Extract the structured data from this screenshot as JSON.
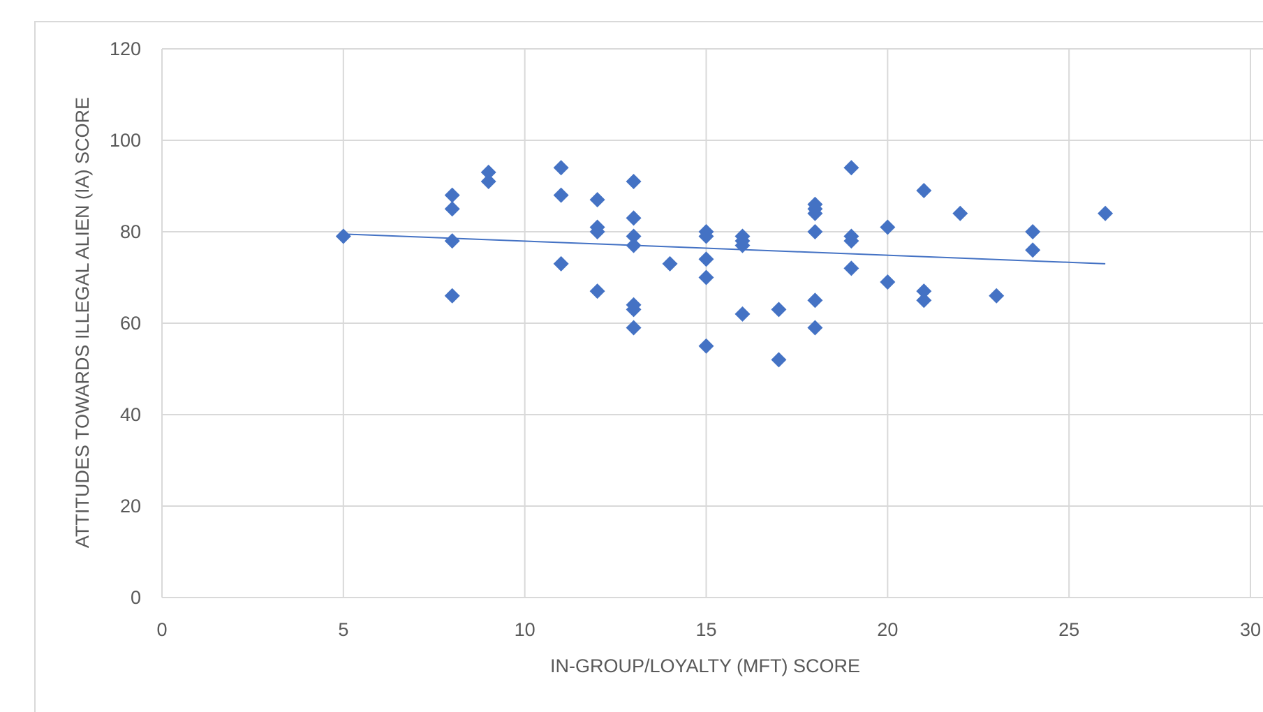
{
  "chart_data": {
    "type": "scatter",
    "title": "",
    "xlabel": "IN-GROUP/LOYALTY (MFT) SCORE",
    "ylabel": "ATTITUDES TOWARDS ILLEGAL ALIEN (IA) SCORE",
    "xlim": [
      0,
      30
    ],
    "ylim": [
      0,
      120
    ],
    "x_ticks": [
      "0",
      "5",
      "10",
      "15",
      "20",
      "25",
      "30"
    ],
    "y_ticks": [
      "0",
      "20",
      "40",
      "60",
      "80",
      "100",
      "120"
    ],
    "grid": true,
    "legend": "none",
    "marker": "diamond",
    "colors": {
      "points": "#4472c4",
      "trendline": "#4472c4",
      "grid": "#d9d9d9",
      "text": "#595959"
    },
    "series": [
      {
        "points": [
          [
            5,
            79
          ],
          [
            8,
            88
          ],
          [
            8,
            85
          ],
          [
            8,
            78
          ],
          [
            8,
            66
          ],
          [
            9,
            93
          ],
          [
            9,
            91
          ],
          [
            11,
            94
          ],
          [
            11,
            88
          ],
          [
            11,
            73
          ],
          [
            12,
            87
          ],
          [
            12,
            81
          ],
          [
            12,
            80
          ],
          [
            12,
            67
          ],
          [
            13,
            91
          ],
          [
            13,
            83
          ],
          [
            13,
            79
          ],
          [
            13,
            77
          ],
          [
            13,
            64
          ],
          [
            13,
            63
          ],
          [
            13,
            59
          ],
          [
            14,
            73
          ],
          [
            15,
            80
          ],
          [
            15,
            79
          ],
          [
            15,
            74
          ],
          [
            15,
            70
          ],
          [
            15,
            55
          ],
          [
            16,
            79
          ],
          [
            16,
            78
          ],
          [
            16,
            77
          ],
          [
            16,
            62
          ],
          [
            17,
            63
          ],
          [
            17,
            52
          ],
          [
            18,
            86
          ],
          [
            18,
            85
          ],
          [
            18,
            84
          ],
          [
            18,
            80
          ],
          [
            18,
            65
          ],
          [
            18,
            59
          ],
          [
            19,
            94
          ],
          [
            19,
            79
          ],
          [
            19,
            78
          ],
          [
            19,
            72
          ],
          [
            20,
            81
          ],
          [
            20,
            69
          ],
          [
            21,
            89
          ],
          [
            21,
            67
          ],
          [
            21,
            65
          ],
          [
            22,
            84
          ],
          [
            23,
            66
          ],
          [
            24,
            80
          ],
          [
            24,
            76
          ],
          [
            26,
            84
          ]
        ]
      }
    ],
    "trendline": {
      "type": "linear",
      "from": [
        5,
        79.5
      ],
      "to": [
        26,
        73
      ]
    }
  }
}
